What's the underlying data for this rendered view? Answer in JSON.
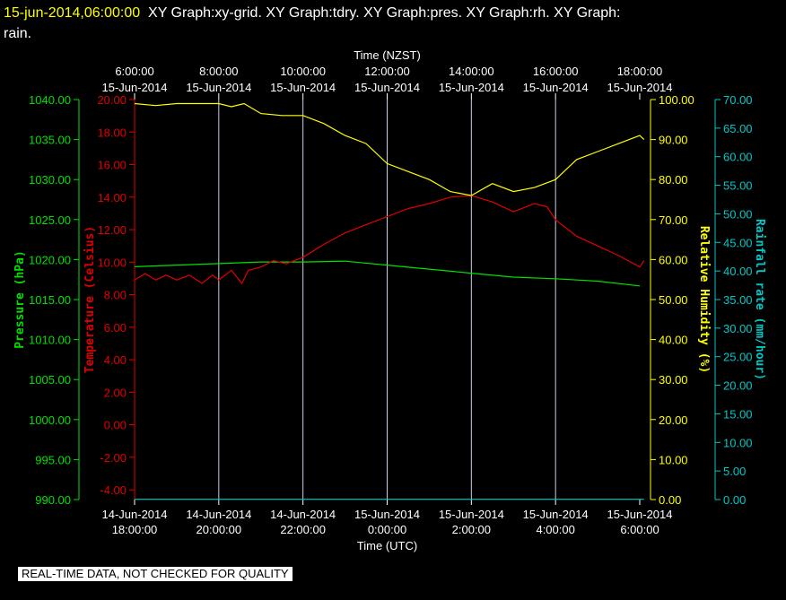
{
  "header": {
    "timestamp": "15-jun-2014,06:00:00",
    "graphs_line1": "XY Graph:xy-grid.  XY Graph:tdry.  XY Graph:pres.  XY Graph:rh.  XY Graph:",
    "graphs_line2": "rain."
  },
  "quality_notice": "REAL-TIME DATA, NOT CHECKED FOR QUALITY",
  "colors": {
    "pressure": "#00e000",
    "temperature": "#e00000",
    "humidity": "#ffff00",
    "rainfall": "#00c8c8",
    "grid": "#c8d2e6",
    "text": "#ffffff"
  },
  "chart_data": {
    "type": "line",
    "top_axis": {
      "title": "Time (NZST)",
      "ticks": [
        {
          "t": 0,
          "line1": "6:00:00",
          "line2": "15-Jun-2014"
        },
        {
          "t": 2,
          "line1": "8:00:00",
          "line2": "15-Jun-2014"
        },
        {
          "t": 4,
          "line1": "10:00:00",
          "line2": "15-Jun-2014"
        },
        {
          "t": 6,
          "line1": "12:00:00",
          "line2": "15-Jun-2014"
        },
        {
          "t": 8,
          "line1": "14:00:00",
          "line2": "15-Jun-2014"
        },
        {
          "t": 10,
          "line1": "16:00:00",
          "line2": "15-Jun-2014"
        },
        {
          "t": 12,
          "line1": "18:00:00",
          "line2": "15-Jun-2014"
        }
      ]
    },
    "bottom_axis": {
      "title": "Time (UTC)",
      "ticks": [
        {
          "t": 0,
          "line1": "14-Jun-2014",
          "line2": "18:00:00"
        },
        {
          "t": 2,
          "line1": "14-Jun-2014",
          "line2": "20:00:00"
        },
        {
          "t": 4,
          "line1": "14-Jun-2014",
          "line2": "22:00:00"
        },
        {
          "t": 6,
          "line1": "15-Jun-2014",
          "line2": "0:00:00"
        },
        {
          "t": 8,
          "line1": "15-Jun-2014",
          "line2": "2:00:00"
        },
        {
          "t": 10,
          "line1": "15-Jun-2014",
          "line2": "4:00:00"
        },
        {
          "t": 12,
          "line1": "15-Jun-2014",
          "line2": "6:00:00"
        }
      ]
    },
    "axes": {
      "pressure": {
        "label": "Pressure (hPa)",
        "min": 990,
        "max": 1040,
        "ticks": [
          "1040.00",
          "1035.00",
          "1030.00",
          "1025.00",
          "1020.00",
          "1015.00",
          "1010.00",
          "1005.00",
          "1000.00",
          "995.00",
          "990.00"
        ]
      },
      "temperature": {
        "label": "Temperature (Celsius)",
        "min": -4.6,
        "max": 20,
        "ticks": [
          "20.00",
          "18.00",
          "16.00",
          "14.00",
          "12.00",
          "10.00",
          "8.00",
          "6.00",
          "4.00",
          "2.00",
          "0.00",
          "-2.00",
          "-4.00"
        ]
      },
      "humidity": {
        "label": "Relative Humidity (%)",
        "min": 0,
        "max": 100,
        "ticks": [
          "100.00",
          "90.00",
          "80.00",
          "70.00",
          "60.00",
          "50.00",
          "40.00",
          "30.00",
          "20.00",
          "10.00",
          "0.00"
        ]
      },
      "rainfall": {
        "label": "Rainfall rate (mm/hour)",
        "min": 0,
        "max": 70,
        "ticks": [
          "70.00",
          "65.00",
          "60.00",
          "55.00",
          "50.00",
          "45.00",
          "40.00",
          "35.00",
          "30.00",
          "25.00",
          "20.00",
          "15.00",
          "10.00",
          "5.00",
          "0.00"
        ]
      }
    },
    "series": [
      {
        "name": "pressure",
        "axis": "pressure",
        "points": [
          [
            0,
            1019.1
          ],
          [
            2,
            1019.5
          ],
          [
            3,
            1019.7
          ],
          [
            4,
            1019.7
          ],
          [
            5,
            1019.8
          ],
          [
            6,
            1019.3
          ],
          [
            7,
            1018.8
          ],
          [
            8,
            1018.3
          ],
          [
            9,
            1017.8
          ],
          [
            10,
            1017.6
          ],
          [
            11,
            1017.3
          ],
          [
            12,
            1016.7
          ]
        ]
      },
      {
        "name": "temperature",
        "axis": "temperature",
        "points": [
          [
            0,
            8.9
          ],
          [
            0.25,
            9.3
          ],
          [
            0.5,
            8.9
          ],
          [
            0.75,
            9.2
          ],
          [
            1,
            8.9
          ],
          [
            1.3,
            9.2
          ],
          [
            1.6,
            8.7
          ],
          [
            1.85,
            9.2
          ],
          [
            2,
            8.9
          ],
          [
            2.3,
            9.5
          ],
          [
            2.55,
            8.7
          ],
          [
            2.7,
            9.5
          ],
          [
            3,
            9.7
          ],
          [
            3.3,
            10.1
          ],
          [
            3.6,
            9.9
          ],
          [
            4,
            10.3
          ],
          [
            4.5,
            11.1
          ],
          [
            5,
            11.8
          ],
          [
            5.5,
            12.3
          ],
          [
            6,
            12.8
          ],
          [
            6.5,
            13.3
          ],
          [
            7,
            13.6
          ],
          [
            7.5,
            14.0
          ],
          [
            8,
            14.1
          ],
          [
            8.5,
            13.7
          ],
          [
            9,
            13.1
          ],
          [
            9.5,
            13.6
          ],
          [
            9.8,
            13.4
          ],
          [
            10,
            12.6
          ],
          [
            10.5,
            11.6
          ],
          [
            11,
            11.0
          ],
          [
            11.5,
            10.4
          ],
          [
            12,
            9.7
          ],
          [
            12.1,
            10.1
          ]
        ]
      },
      {
        "name": "humidity",
        "axis": "humidity",
        "points": [
          [
            0,
            99
          ],
          [
            0.5,
            98.5
          ],
          [
            1,
            99
          ],
          [
            2,
            99
          ],
          [
            2.3,
            98.2
          ],
          [
            2.6,
            99
          ],
          [
            3,
            96.5
          ],
          [
            3.5,
            96
          ],
          [
            4,
            96
          ],
          [
            4.5,
            94
          ],
          [
            5,
            91
          ],
          [
            5.5,
            89
          ],
          [
            6,
            84
          ],
          [
            6.5,
            82
          ],
          [
            7,
            80
          ],
          [
            7.5,
            77
          ],
          [
            8,
            76
          ],
          [
            8.5,
            79
          ],
          [
            9,
            77
          ],
          [
            9.5,
            78
          ],
          [
            10,
            80
          ],
          [
            10.5,
            85
          ],
          [
            11,
            87
          ],
          [
            11.5,
            89
          ],
          [
            12,
            91
          ],
          [
            12.1,
            90
          ]
        ]
      },
      {
        "name": "rainfall",
        "axis": "rainfall",
        "points": [
          [
            0,
            0.05
          ],
          [
            12.1,
            0.05
          ]
        ]
      }
    ]
  }
}
